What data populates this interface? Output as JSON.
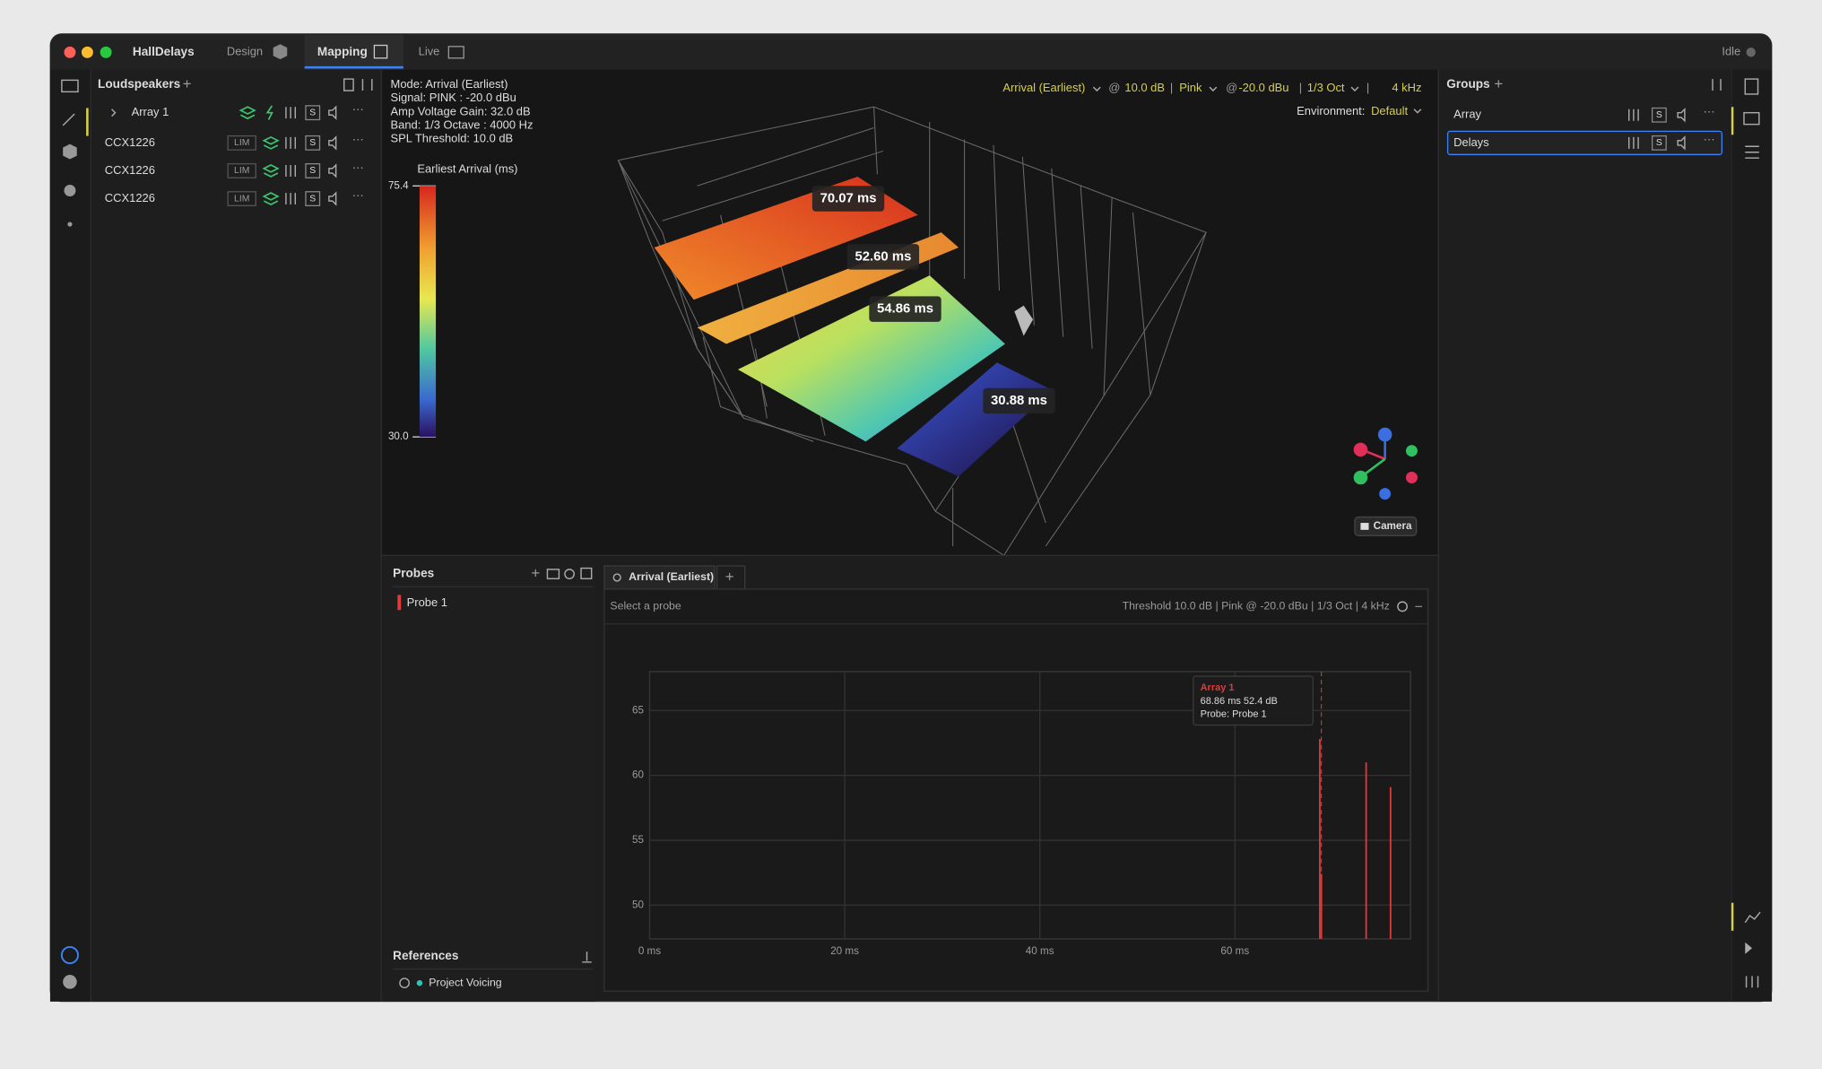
{
  "window": {
    "app_title": "HallDelays",
    "tabs": [
      "Design",
      "Mapping",
      "Live"
    ],
    "status": "Idle"
  },
  "loudspeakers": {
    "title": "Loudspeakers",
    "items": [
      {
        "name": "Array 1",
        "solo": "S"
      },
      {
        "name": "CCX1226",
        "limit": "LIM",
        "solo": "S"
      },
      {
        "name": "CCX1226",
        "limit": "LIM",
        "solo": "S"
      },
      {
        "name": "CCX1226",
        "limit": "LIM",
        "solo": "S"
      }
    ]
  },
  "viewport": {
    "info": [
      "Mode: Arrival (Earliest)",
      "Signal: PINK : -20.0 dBu",
      "Amp Voltage Gain: 32.0 dB",
      "Band: 1/3 Octave : 4000 Hz",
      "SPL Threshold: 10.0 dB"
    ],
    "colorbar": {
      "title": "Earliest Arrival (ms)",
      "lim": [
        30,
        75.4
      ],
      "ticks": [
        75.4,
        {
          "value": 30,
          "label": "30.0"
        }
      ]
    },
    "toolbar": [
      "Arrival (Earliest)",
      "@",
      "10.0 dB",
      "|",
      "Pink",
      "@",
      "-20.0 dBu",
      "|",
      "1/3 Oct",
      "|",
      "4 kHz"
    ],
    "environment_label": "Environment:",
    "environment": "Default",
    "labels": [
      "70.07 ms",
      "52.60 ms",
      "54.86 ms",
      "30.88 ms"
    ],
    "camera": "Camera"
  },
  "groups": {
    "title": "Groups",
    "items": [
      {
        "name": "Array",
        "solo": "S"
      },
      {
        "name": "Delays",
        "solo": "S"
      }
    ]
  },
  "probes": {
    "title": "Probes",
    "items": [
      "Probe 1"
    ]
  },
  "references": {
    "title": "References",
    "items": [
      "Project Voicing"
    ]
  },
  "analysis": {
    "tab": "Arrival (Earliest)",
    "hint": "Select a probe",
    "settings": "Threshold 10.0 dB | Pink @ -20.0 dBu | 1/3 Oct | 4 kHz"
  },
  "chart_data": {
    "type": "stem",
    "x": [
      68.7,
      68.86,
      73.45,
      75.95
    ],
    "series": [
      {
        "name": "Array 1",
        "color": "#e03a3a",
        "values": [
          62.8,
          52.4,
          61.0,
          59.1
        ]
      }
    ],
    "xlim": [
      0,
      78
    ],
    "ylim": [
      47.4,
      68
    ],
    "xticks": [
      {
        "value": 0,
        "label": "0 ms"
      },
      {
        "value": 20,
        "label": "20 ms"
      },
      {
        "value": 40,
        "label": "40 ms"
      },
      {
        "value": 60,
        "label": "60 ms"
      }
    ],
    "yticks": [
      50,
      55,
      60,
      65
    ],
    "grid": true,
    "cursor": 68.86,
    "tooltip": [
      "68.86 ms 52.4 dB",
      "Probe: Probe 1"
    ]
  }
}
